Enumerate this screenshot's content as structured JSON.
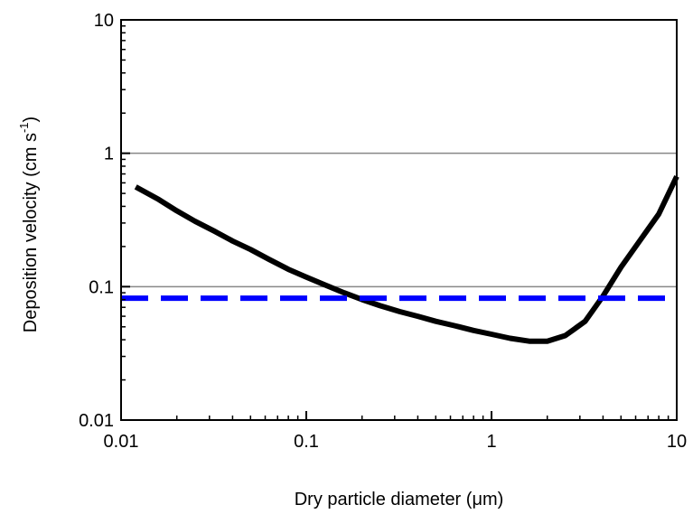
{
  "chart_data": {
    "type": "line",
    "title": "",
    "xlabel": "Dry particle diameter (μm)",
    "ylabel_main": "Deposition velocity (cm s",
    "ylabel_sup": "-1",
    "ylabel_close": ")",
    "xscale": "log",
    "yscale": "log",
    "xlim": [
      0.01,
      10
    ],
    "ylim": [
      0.01,
      10
    ],
    "xticks": [
      0.01,
      0.1,
      1,
      10
    ],
    "yticks": [
      0.01,
      0.1,
      1,
      10
    ],
    "xtick_labels": [
      "0.01",
      "0.1",
      "1",
      "10"
    ],
    "ytick_labels": [
      "0.01",
      "0.1",
      "1",
      "10"
    ],
    "gridlines_y": [
      0.1,
      1
    ],
    "legend": "none",
    "series": [
      {
        "style": "solid",
        "color": "#000000",
        "x": [
          0.012,
          0.016,
          0.02,
          0.025,
          0.032,
          0.04,
          0.05,
          0.063,
          0.08,
          0.1,
          0.126,
          0.16,
          0.2,
          0.25,
          0.32,
          0.4,
          0.5,
          0.63,
          0.8,
          1.0,
          1.26,
          1.6,
          2.0,
          2.5,
          3.2,
          4.0,
          5.0,
          6.3,
          8.0,
          10.0
        ],
        "y": [
          0.56,
          0.45,
          0.37,
          0.31,
          0.26,
          0.22,
          0.19,
          0.16,
          0.135,
          0.118,
          0.103,
          0.09,
          0.08,
          0.072,
          0.065,
          0.06,
          0.055,
          0.051,
          0.047,
          0.044,
          0.041,
          0.039,
          0.039,
          0.043,
          0.055,
          0.085,
          0.14,
          0.22,
          0.35,
          0.67
        ]
      },
      {
        "style": "dashed",
        "color": "#0000ff",
        "x": [
          0.01,
          10
        ],
        "y": [
          0.082,
          0.082
        ]
      }
    ]
  }
}
